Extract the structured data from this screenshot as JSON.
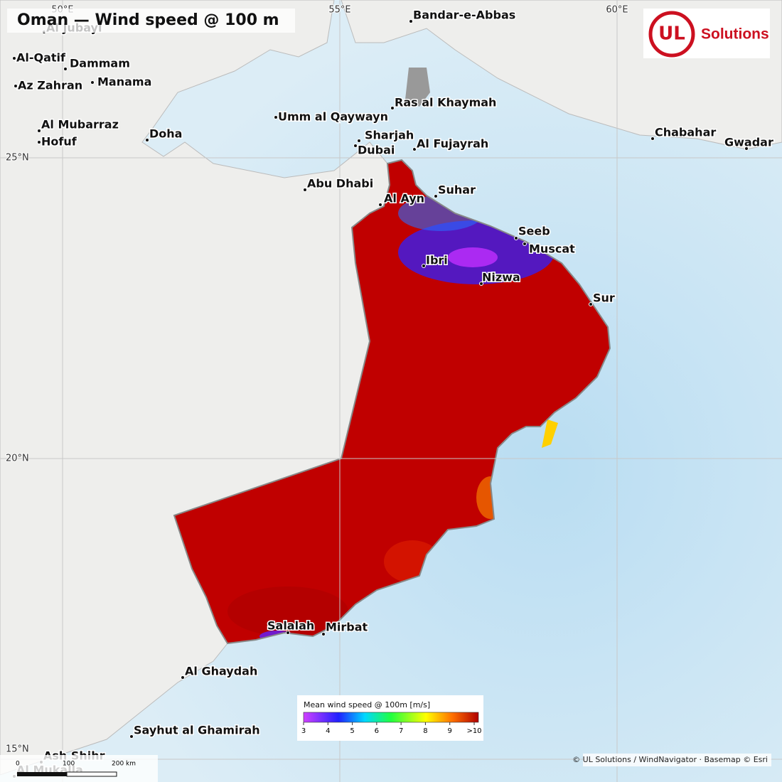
{
  "title": "Oman — Wind speed @ 100 m",
  "logo": {
    "mark": "UL",
    "text": "Solutions"
  },
  "graticule": {
    "lon": [
      "50°E",
      "55°E",
      "60°E"
    ],
    "lat": [
      "25°N",
      "20°N",
      "15°N"
    ]
  },
  "cities": [
    "Al Jubayl",
    "Al-Qatif",
    "Dammam",
    "Az Zahran",
    "Manama",
    "Al Mubarraz",
    "Hofuf",
    "Doha",
    "Bandar-e-Abbas",
    "Ras al Khaymah",
    "Umm al Qaywayn",
    "Sharjah",
    "Dubai",
    "Al Fujayrah",
    "Chabahar",
    "Gwadar",
    "Abu Dhabi",
    "Al Ayn",
    "Suhar",
    "Seeb",
    "Muscat",
    "Ibri",
    "Nizwa",
    "Sur",
    "Salalah",
    "Mirbat",
    "Al Ghaydah",
    "Sayhut al Ghamirah",
    "Ash Shihr",
    "Al Mukalla"
  ],
  "legend": {
    "title": "Mean wind speed @ 100m  [m/s]",
    "range": [
      3,
      10
    ],
    "ticks": [
      3,
      4,
      5,
      6,
      7,
      8,
      9,
      {
        "value": 10,
        "label": ">10"
      }
    ]
  },
  "scale_bar": [
    "0",
    "100",
    "200 km"
  ],
  "attribution": "© UL Solutions / WindNavigator · Basemap © Esri"
}
